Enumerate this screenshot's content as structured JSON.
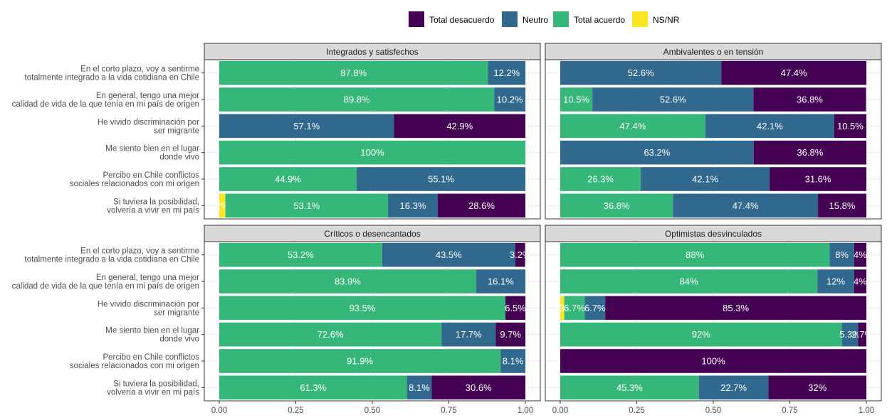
{
  "colors": {
    "Total desacuerdo": "#440154",
    "Neutro": "#31688E",
    "Total acuerdo": "#35B779",
    "NS/NR": "#FDE725",
    "strip_bg": "#D9D9D9",
    "panel_border": "#333333",
    "grid": "#EBEBEB",
    "axis_text": "#4D4D4D"
  },
  "chart_data": {
    "type": "bar",
    "orientation": "horizontal",
    "stacked": true,
    "legend": {
      "position": "top",
      "entries": [
        "Total desacuerdo",
        "Neutro",
        "Total acuerdo",
        "NS/NR"
      ]
    },
    "stack_order": [
      "NS/NR",
      "Total acuerdo",
      "Neutro",
      "Total desacuerdo"
    ],
    "xlim": [
      0,
      1
    ],
    "x_ticks": [
      0,
      0.25,
      0.5,
      0.75,
      1
    ],
    "x_tick_labels": [
      "0.00",
      "0.25",
      "0.50",
      "0.75",
      "1.00"
    ],
    "grid": true,
    "categories": [
      "En el corto plazo, voy a sentirme\ntotalmente integrado a la vida cotidiana en Chile",
      "En general, tengo una mejor\ncalidad de vida de la que tenía en mi país de origen",
      "He vivido discriminación por\nser migrante",
      "Me siento bien en el lugar\ndonde vivo",
      "Percibo en Chile conflictos\nsociales relacionados con mi origen",
      "Si tuviera la posibilidad,\nvolvería a vivir en mi país"
    ],
    "panels": [
      {
        "title": "Integrados y satisfechos",
        "rows": [
          {
            "NS/NR": 0,
            "Total acuerdo": 0.878,
            "Neutro": 0.122,
            "Total desacuerdo": 0,
            "labels": {
              "Total acuerdo": "87.8%",
              "Neutro": "12.2%"
            }
          },
          {
            "NS/NR": 0,
            "Total acuerdo": 0.898,
            "Neutro": 0.102,
            "Total desacuerdo": 0,
            "labels": {
              "Total acuerdo": "89.8%",
              "Neutro": "10.2%"
            }
          },
          {
            "NS/NR": 0,
            "Total acuerdo": 0,
            "Neutro": 0.571,
            "Total desacuerdo": 0.429,
            "labels": {
              "Neutro": "57.1%",
              "Total desacuerdo": "42.9%"
            }
          },
          {
            "NS/NR": 0,
            "Total acuerdo": 1.0,
            "Neutro": 0,
            "Total desacuerdo": 0,
            "labels": {
              "Total acuerdo": "100%"
            }
          },
          {
            "NS/NR": 0,
            "Total acuerdo": 0.449,
            "Neutro": 0.551,
            "Total desacuerdo": 0,
            "labels": {
              "Total acuerdo": "44.9%",
              "Neutro": "55.1%"
            }
          },
          {
            "NS/NR": 0.02,
            "Total acuerdo": 0.531,
            "Neutro": 0.163,
            "Total desacuerdo": 0.286,
            "labels": {
              "NS/NR": "2%",
              "Total acuerdo": "53.1%",
              "Neutro": "16.3%",
              "Total desacuerdo": "28.6%"
            }
          }
        ]
      },
      {
        "title": "Ambivalentes o en tensión",
        "rows": [
          {
            "NS/NR": 0,
            "Total acuerdo": 0,
            "Neutro": 0.526,
            "Total desacuerdo": 0.474,
            "labels": {
              "Neutro": "52.6%",
              "Total desacuerdo": "47.4%"
            }
          },
          {
            "NS/NR": 0,
            "Total acuerdo": 0.105,
            "Neutro": 0.526,
            "Total desacuerdo": 0.368,
            "labels": {
              "Total acuerdo": "10.5%",
              "Neutro": "52.6%",
              "Total desacuerdo": "36.8%"
            }
          },
          {
            "NS/NR": 0,
            "Total acuerdo": 0.474,
            "Neutro": 0.421,
            "Total desacuerdo": 0.105,
            "labels": {
              "Total acuerdo": "47.4%",
              "Neutro": "42.1%",
              "Total desacuerdo": "10.5%"
            }
          },
          {
            "NS/NR": 0,
            "Total acuerdo": 0,
            "Neutro": 0.632,
            "Total desacuerdo": 0.368,
            "labels": {
              "Neutro": "63.2%",
              "Total desacuerdo": "36.8%"
            }
          },
          {
            "NS/NR": 0,
            "Total acuerdo": 0.263,
            "Neutro": 0.421,
            "Total desacuerdo": 0.316,
            "labels": {
              "Total acuerdo": "26.3%",
              "Neutro": "42.1%",
              "Total desacuerdo": "31.6%"
            }
          },
          {
            "NS/NR": 0,
            "Total acuerdo": 0.368,
            "Neutro": 0.474,
            "Total desacuerdo": 0.158,
            "labels": {
              "Total acuerdo": "36.8%",
              "Neutro": "47.4%",
              "Total desacuerdo": "15.8%"
            }
          }
        ]
      },
      {
        "title": "Críticos o desencantados",
        "rows": [
          {
            "NS/NR": 0,
            "Total acuerdo": 0.532,
            "Neutro": 0.435,
            "Total desacuerdo": 0.032,
            "labels": {
              "Total acuerdo": "53.2%",
              "Neutro": "43.5%",
              "Total desacuerdo": "3.2%"
            }
          },
          {
            "NS/NR": 0,
            "Total acuerdo": 0.839,
            "Neutro": 0.161,
            "Total desacuerdo": 0,
            "labels": {
              "Total acuerdo": "83.9%",
              "Neutro": "16.1%"
            }
          },
          {
            "NS/NR": 0,
            "Total acuerdo": 0.935,
            "Neutro": 0,
            "Total desacuerdo": 0.065,
            "labels": {
              "Total acuerdo": "93.5%",
              "Total desacuerdo": "6.5%"
            }
          },
          {
            "NS/NR": 0,
            "Total acuerdo": 0.726,
            "Neutro": 0.177,
            "Total desacuerdo": 0.097,
            "labels": {
              "Total acuerdo": "72.6%",
              "Neutro": "17.7%",
              "Total desacuerdo": "9.7%"
            }
          },
          {
            "NS/NR": 0,
            "Total acuerdo": 0.919,
            "Neutro": 0.081,
            "Total desacuerdo": 0,
            "labels": {
              "Total acuerdo": "91.9%",
              "Neutro": "8.1%"
            }
          },
          {
            "NS/NR": 0,
            "Total acuerdo": 0.613,
            "Neutro": 0.081,
            "Total desacuerdo": 0.306,
            "labels": {
              "Total acuerdo": "61.3%",
              "Neutro": "8.1%",
              "Total desacuerdo": "30.6%"
            }
          }
        ]
      },
      {
        "title": "Optimistas desvinculados",
        "rows": [
          {
            "NS/NR": 0,
            "Total acuerdo": 0.88,
            "Neutro": 0.08,
            "Total desacuerdo": 0.04,
            "labels": {
              "Total acuerdo": "88%",
              "Neutro": "8%",
              "Total desacuerdo": "4%"
            }
          },
          {
            "NS/NR": 0,
            "Total acuerdo": 0.84,
            "Neutro": 0.12,
            "Total desacuerdo": 0.04,
            "labels": {
              "Total acuerdo": "84%",
              "Neutro": "12%",
              "Total desacuerdo": "4%"
            }
          },
          {
            "NS/NR": 0.013,
            "Total acuerdo": 0.067,
            "Neutro": 0.067,
            "Total desacuerdo": 0.853,
            "labels": {
              "NS/NR": "1.3%",
              "Total acuerdo": "6.7%",
              "Neutro": "6.7%",
              "Total desacuerdo": "85.3%"
            }
          },
          {
            "NS/NR": 0,
            "Total acuerdo": 0.92,
            "Neutro": 0.053,
            "Total desacuerdo": 0.027,
            "labels": {
              "Total acuerdo": "92%",
              "Neutro": "5.3%",
              "Total desacuerdo": "2.7%"
            }
          },
          {
            "NS/NR": 0,
            "Total acuerdo": 0,
            "Neutro": 0,
            "Total desacuerdo": 1.0,
            "labels": {
              "Total desacuerdo": "100%"
            }
          },
          {
            "NS/NR": 0,
            "Total acuerdo": 0.453,
            "Neutro": 0.227,
            "Total desacuerdo": 0.32,
            "labels": {
              "Total acuerdo": "45.3%",
              "Neutro": "22.7%",
              "Total desacuerdo": "32%"
            }
          }
        ]
      }
    ]
  }
}
